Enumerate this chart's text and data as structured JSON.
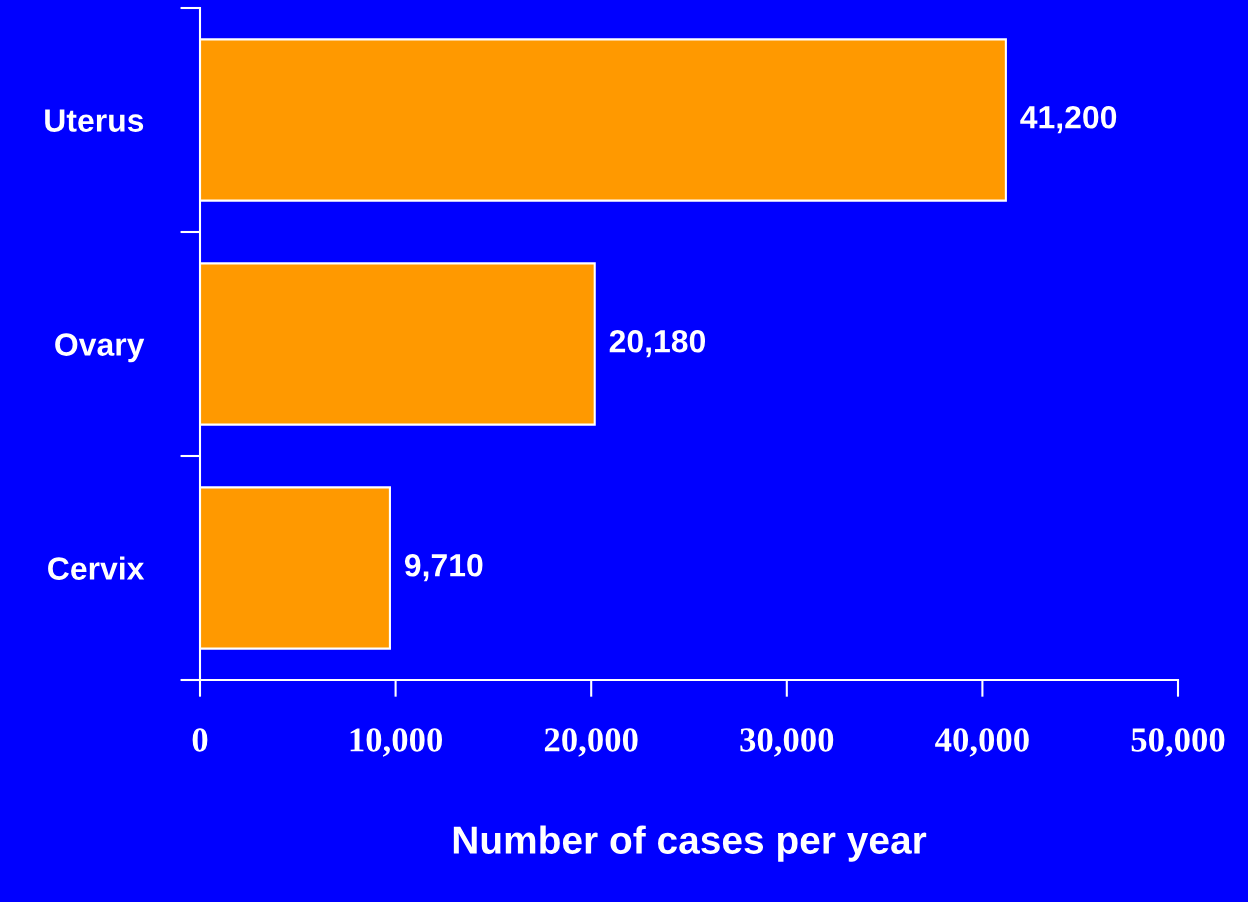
{
  "chart_data": {
    "type": "bar",
    "orientation": "horizontal",
    "categories": [
      "Uterus",
      "Ovary",
      "Cervix"
    ],
    "values": [
      41200,
      20180,
      9710
    ],
    "value_labels": [
      "41,200",
      "20,180",
      "9,710"
    ],
    "color": "#ff9900",
    "xlim": [
      0,
      50000
    ],
    "xticks": [
      0,
      {
        "value": 10000,
        "label": "10,000"
      },
      {
        "value": 20000,
        "label": "20,000"
      },
      {
        "value": 30000,
        "label": "30,000"
      },
      {
        "value": 40000,
        "label": "40,000"
      },
      {
        "value": 50000,
        "label": "50,000"
      }
    ],
    "xlabel": "Number of cases per year",
    "grid": false
  }
}
